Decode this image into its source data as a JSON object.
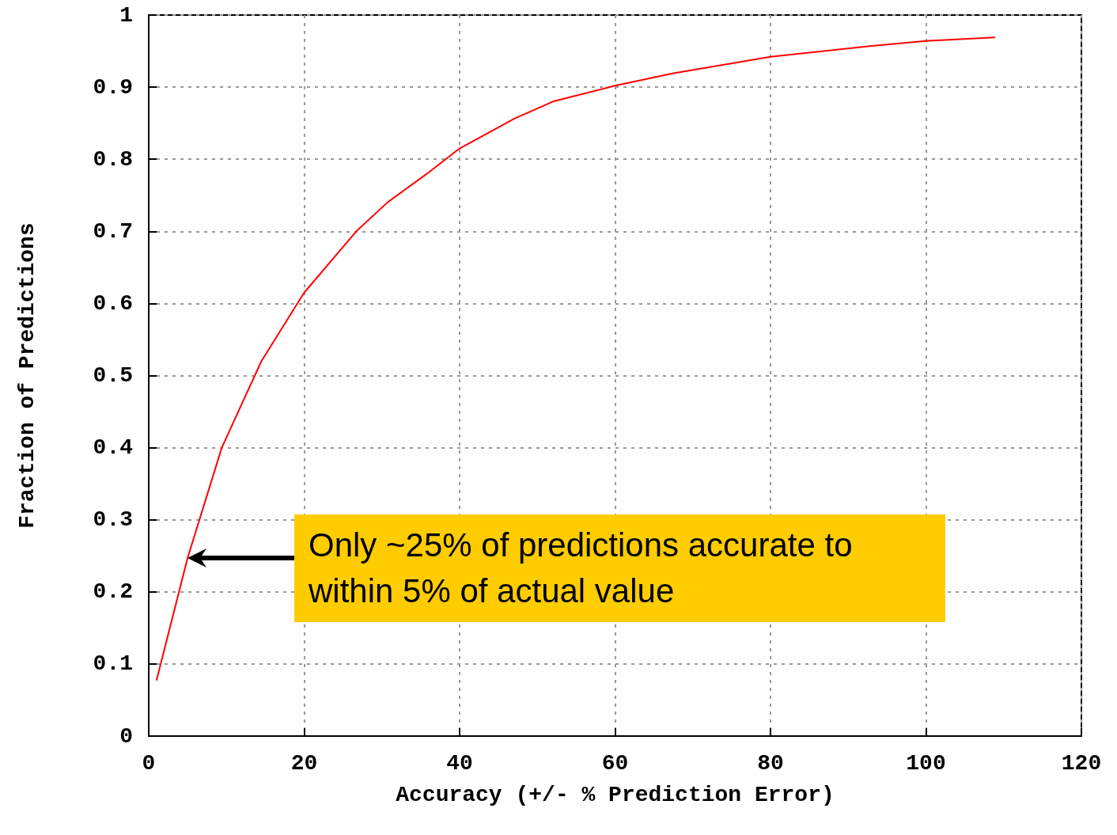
{
  "chart_data": {
    "type": "line",
    "xlabel": "Accuracy (+/- % Prediction Error)",
    "ylabel": "Fraction of Predictions",
    "x": [
      1.0,
      5.0,
      9.4,
      14.5,
      20,
      26.7,
      30.7,
      35.8,
      40,
      47,
      52,
      60,
      67.4,
      80,
      92.8,
      100,
      108.9
    ],
    "series": [
      {
        "color": "#ff0000",
        "values": [
          0.077,
          0.247,
          0.4,
          0.52,
          0.615,
          0.7,
          0.74,
          0.78,
          0.815,
          0.856,
          0.88,
          0.902,
          0.919,
          0.942,
          0.957,
          0.964,
          0.969
        ]
      }
    ],
    "xlim": [
      0,
      120
    ],
    "xticks": [
      0,
      20,
      40,
      60,
      80,
      100,
      120
    ],
    "ylim": [
      0,
      1
    ],
    "yticks": [
      0,
      0.1,
      0.2,
      0.3,
      0.4,
      0.5,
      0.6,
      0.7,
      0.8,
      0.9,
      1
    ],
    "grid": true,
    "marker": "none",
    "line_style": "solid",
    "annotations": [
      "Only ~25% of predictions accurate to within 5% of actual value"
    ]
  }
}
